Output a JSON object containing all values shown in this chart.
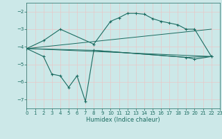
{
  "xlabel": "Humidex (Indice chaleur)",
  "xlim": [
    0,
    23
  ],
  "ylim": [
    -7.5,
    -1.5
  ],
  "yticks": [
    -7,
    -6,
    -5,
    -4,
    -3,
    -2
  ],
  "xticks": [
    0,
    1,
    2,
    3,
    4,
    5,
    6,
    7,
    8,
    9,
    10,
    11,
    12,
    13,
    14,
    15,
    16,
    17,
    18,
    19,
    20,
    21,
    22,
    23
  ],
  "bg_color": "#cce8e8",
  "grid_color": "#e8c8c8",
  "line_color": "#1a6b60",
  "line1_x": [
    0,
    2,
    4,
    8,
    10,
    11,
    12,
    13,
    14,
    15,
    16,
    17,
    18,
    19,
    20,
    22
  ],
  "line1_y": [
    -4.1,
    -3.65,
    -3.0,
    -3.85,
    -2.55,
    -2.35,
    -2.1,
    -2.1,
    -2.15,
    -2.4,
    -2.55,
    -2.65,
    -2.75,
    -3.0,
    -3.0,
    -4.55
  ],
  "line2_x": [
    0,
    2,
    3,
    4,
    5,
    6,
    7,
    8,
    19,
    20,
    22
  ],
  "line2_y": [
    -4.1,
    -4.55,
    -5.55,
    -5.65,
    -6.3,
    -5.65,
    -7.1,
    -4.2,
    -4.6,
    -4.7,
    -4.55
  ],
  "line3_x": [
    0,
    22
  ],
  "line3_y": [
    -4.1,
    -3.0
  ],
  "line4_x": [
    0,
    22
  ],
  "line4_y": [
    -4.1,
    -4.55
  ],
  "line5_x": [
    0,
    8,
    19,
    22
  ],
  "line5_y": [
    -4.1,
    -4.2,
    -4.6,
    -4.55
  ]
}
